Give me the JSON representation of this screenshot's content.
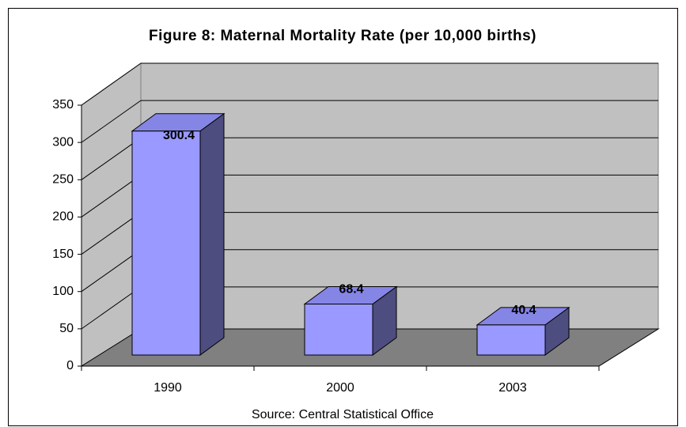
{
  "chart_data": {
    "type": "bar3d",
    "title": "Figure 8:  Maternal Mortality Rate (per 10,000 births)",
    "categories": [
      "1990",
      "2000",
      "2003"
    ],
    "values": [
      300.4,
      68.4,
      40.4
    ],
    "color": "#9999ff",
    "ylim": [
      0,
      350
    ],
    "yticks": [
      0,
      50,
      100,
      150,
      200,
      250,
      300,
      350
    ],
    "grid": true,
    "source": "Source:  Central Statistical Office"
  }
}
